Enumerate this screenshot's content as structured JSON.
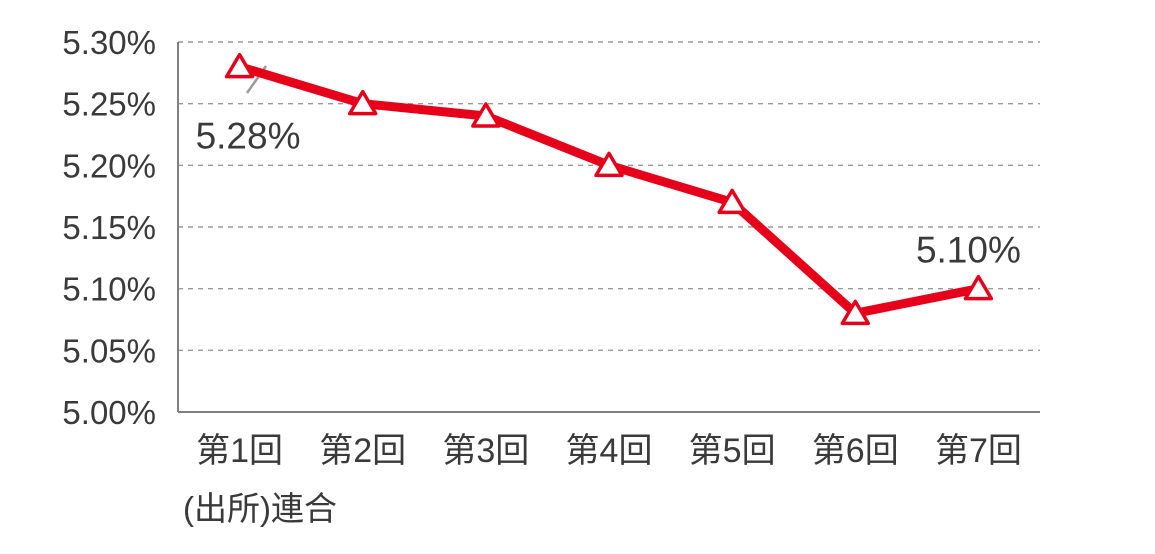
{
  "chart_data": {
    "type": "line",
    "title": "",
    "categories": [
      "第1回",
      "第2回",
      "第3回",
      "第4回",
      "第5回",
      "第6回",
      "第7回"
    ],
    "values": [
      5.28,
      5.25,
      5.24,
      5.2,
      5.17,
      5.08,
      5.1
    ],
    "ylim": [
      5.0,
      5.3
    ],
    "ytick_step": 0.05,
    "ytick_labels": [
      "5.00%",
      "5.05%",
      "5.10%",
      "5.15%",
      "5.20%",
      "5.25%",
      "5.30%"
    ],
    "annotations": [
      {
        "index": 0,
        "text": "5.28%",
        "position": "below-left"
      },
      {
        "index": 6,
        "text": "5.10%",
        "position": "above"
      }
    ],
    "source_note": "(出所)連合",
    "grid": "dashed-horizontal",
    "legend": "none",
    "line_color": "#e60019",
    "marker": "triangle-open-white",
    "axis_color": "#808080",
    "grid_color": "#9a9a9a",
    "text_color": "#3a3a3a"
  }
}
